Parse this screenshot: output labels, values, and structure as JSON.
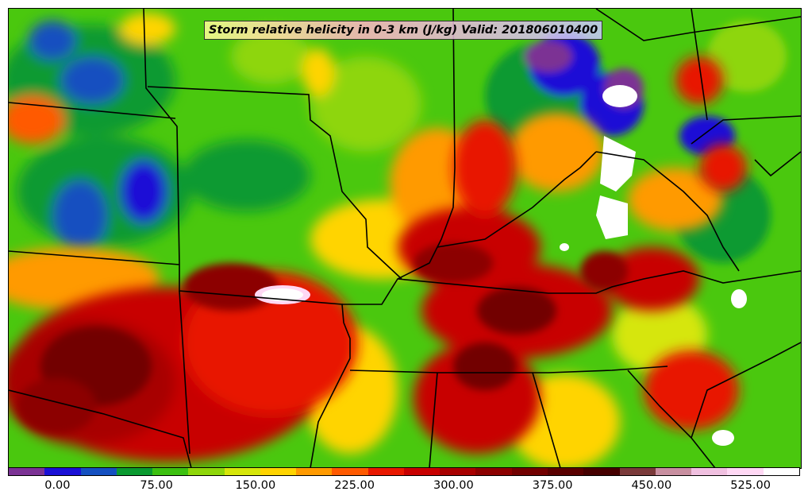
{
  "title": "Storm relative helicity in 0-3 km (J/kg) Valid: 201806010400",
  "colorbar": {
    "colors": [
      "#7b3294",
      "#1a10d6",
      "#1450c0",
      "#0a9a30",
      "#3cc010",
      "#8ed60a",
      "#d6e60a",
      "#ffd400",
      "#ff9a00",
      "#ff5a00",
      "#e81800",
      "#c80000",
      "#a80000",
      "#8c0000",
      "#720000",
      "#5a0000",
      "#460000",
      "#7a3a3a",
      "#c88fa0",
      "#f0c0e0",
      "#ffd8f4",
      "#ffffff"
    ],
    "tick_labels": [
      "0.00",
      "75.00",
      "150.00",
      "225.00",
      "300.00",
      "375.00",
      "450.00",
      "525.00"
    ],
    "tick_values": [
      0,
      75,
      150,
      225,
      300,
      375,
      450,
      525
    ],
    "range": [
      -37.5,
      562.5
    ]
  }
}
